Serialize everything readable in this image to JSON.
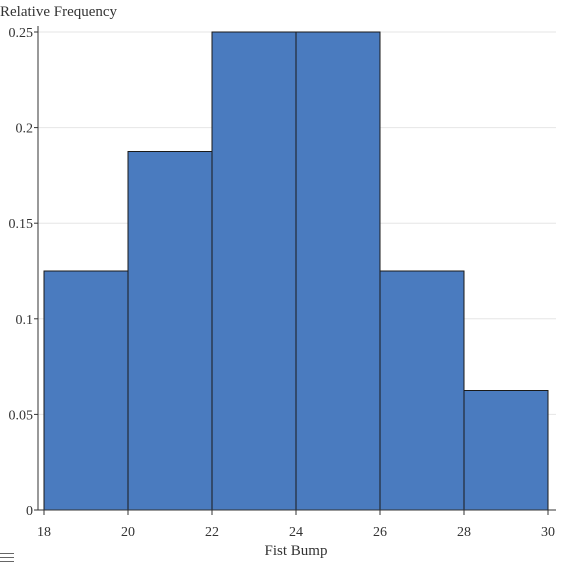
{
  "chart_data": {
    "type": "bar",
    "subtype": "histogram",
    "title": "",
    "xlabel": "Fist Bump",
    "ylabel": "Relative Frequency",
    "bins": [
      {
        "start": 18,
        "end": 20,
        "value": 0.125
      },
      {
        "start": 20,
        "end": 22,
        "value": 0.1875
      },
      {
        "start": 22,
        "end": 24,
        "value": 0.25
      },
      {
        "start": 24,
        "end": 26,
        "value": 0.25
      },
      {
        "start": 26,
        "end": 28,
        "value": 0.125
      },
      {
        "start": 28,
        "end": 30,
        "value": 0.0625
      }
    ],
    "xlim": [
      18,
      30
    ],
    "ylim": [
      0,
      0.25
    ],
    "x_ticks": [
      18,
      20,
      22,
      24,
      26,
      28,
      30
    ],
    "x_tick_labels": [
      "18",
      "20",
      "22",
      "24",
      "26",
      "28",
      "30"
    ],
    "y_ticks": [
      0,
      0.05,
      0.1,
      0.15,
      0.2,
      0.25
    ],
    "y_tick_labels": [
      "0",
      "0.05",
      "0.1",
      "0.15",
      "0.2",
      "0.25"
    ],
    "grid": "horizontal",
    "bar_color": "#4a7bbf",
    "bar_edge_color": "#1a1a1a"
  },
  "menu": {
    "icon": "hamburger-menu-icon"
  }
}
